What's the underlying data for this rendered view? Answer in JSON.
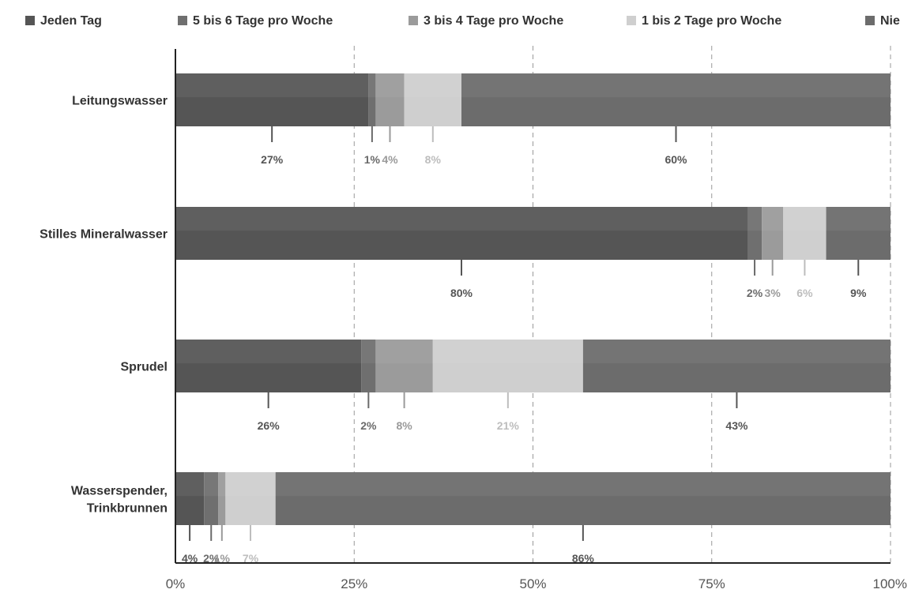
{
  "chart_data": {
    "type": "bar",
    "orientation": "horizontal",
    "stacked": true,
    "xlim": [
      0,
      100
    ],
    "x_ticks": [
      "0%",
      "25%",
      "50%",
      "75%",
      "100%"
    ],
    "grid": "vertical-dashed",
    "legend_position": "top",
    "categories": [
      [
        "Leitungswasser"
      ],
      [
        "Stilles Mineralwasser"
      ],
      [
        "Sprudel"
      ],
      [
        "Wasserspender,",
        "Trinkbrunnen"
      ]
    ],
    "series": [
      {
        "name": "Jeden Tag",
        "color": "#555555",
        "label_color": "#555555",
        "values": [
          27,
          80,
          26,
          4
        ],
        "labels": [
          "27%",
          "80%",
          "26%",
          "4%"
        ]
      },
      {
        "name": "5 bis 6 Tage pro Woche",
        "color": "#6f6f6f",
        "label_color": "#6a6a6a",
        "values": [
          1,
          2,
          2,
          2
        ],
        "labels": [
          "1%",
          "2%",
          "2%",
          "2%"
        ]
      },
      {
        "name": "3 bis 4 Tage pro Woche",
        "color": "#9b9b9b",
        "label_color": "#9a9a9a",
        "values": [
          4,
          3,
          8,
          1
        ],
        "labels": [
          "4%",
          "3%",
          "8%",
          "1%"
        ]
      },
      {
        "name": "1 bis 2 Tage pro Woche",
        "color": "#cfcfcf",
        "label_color": "#bdbdbd",
        "values": [
          8,
          6,
          21,
          7
        ],
        "labels": [
          "8%",
          "6%",
          "21%",
          "7%"
        ]
      },
      {
        "name": "Nie",
        "color": "#6c6c6c",
        "label_color": "#555555",
        "values": [
          60,
          9,
          43,
          86
        ],
        "labels": [
          "60%",
          "9%",
          "43%",
          "86%"
        ]
      }
    ]
  }
}
